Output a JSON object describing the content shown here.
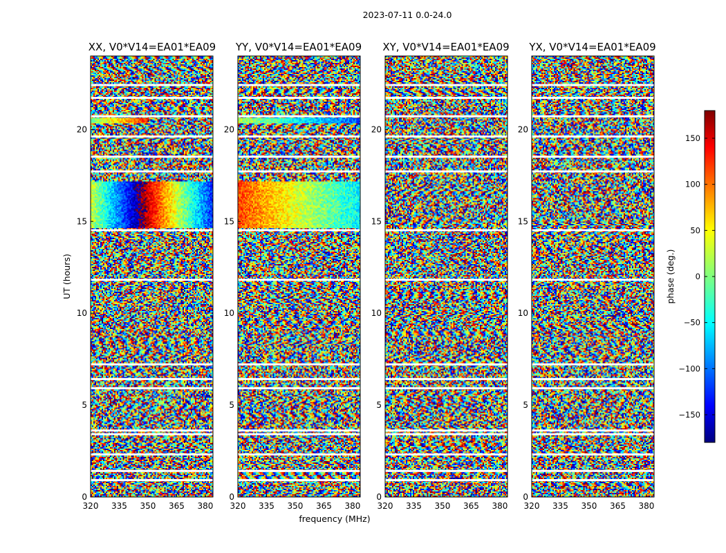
{
  "figure": {
    "suptitle": "2023-07-11 0.0-24.0"
  },
  "colorbar": {
    "label": "phase (deg.)",
    "range": [
      -180,
      180
    ],
    "ticks": [
      150,
      100,
      50,
      0,
      -50,
      -100,
      -150
    ],
    "tick_labels": [
      "150",
      "100",
      "50",
      "0",
      "−50",
      "−100",
      "−150"
    ],
    "colormap": "jet",
    "colors": [
      "#00007f",
      "#0000ff",
      "#007fff",
      "#00ffff",
      "#7fff7f",
      "#ffff00",
      "#ff7f00",
      "#ff0000",
      "#7f0000"
    ]
  },
  "chart_data": [
    {
      "type": "heatmap",
      "title": "XX, V0*V14=EA01*EA09",
      "xlabel": "",
      "ylabel": "UT (hours)",
      "x_ticks": [
        320,
        335,
        350,
        365,
        380
      ],
      "y_ticks": [
        0,
        5,
        10,
        15,
        20
      ],
      "xlim": [
        320,
        384
      ],
      "ylim": [
        0,
        24
      ],
      "z_unit": "phase (deg.)",
      "z_range": [
        -180,
        180
      ],
      "coherent_regions": [
        {
          "ut_range": [
            14.6,
            17.2
          ],
          "freq_range": [
            320,
            384
          ],
          "phase_start_deg": 30,
          "phase_slope_deg_per_mhz": -8
        },
        {
          "ut_range": [
            20.3,
            20.6
          ],
          "freq_range": [
            320,
            350
          ],
          "phase_start_deg": 0,
          "phase_slope_deg_per_mhz": 4
        }
      ],
      "blank_rows_ut": [
        0.9,
        1.4,
        2.3,
        3.4,
        3.6,
        5.9,
        6.4,
        7.2,
        11.8,
        14.5,
        17.7,
        18.5,
        19.6,
        20.7,
        21.7,
        22.4
      ]
    },
    {
      "type": "heatmap",
      "title": "YY, V0*V14=EA01*EA09",
      "xlabel": "frequency (MHz)",
      "ylabel": "",
      "x_ticks": [
        320,
        335,
        350,
        365,
        380
      ],
      "y_ticks": [
        0,
        5,
        10,
        15,
        20
      ],
      "xlim": [
        320,
        384
      ],
      "ylim": [
        0,
        24
      ],
      "z_unit": "phase (deg.)",
      "z_range": [
        -180,
        180
      ],
      "coherent_regions": [
        {
          "ut_range": [
            14.6,
            17.2
          ],
          "freq_range": [
            320,
            384
          ],
          "phase_start_deg": 110,
          "phase_slope_deg_per_mhz": -2.5
        },
        {
          "ut_range": [
            20.3,
            20.6
          ],
          "freq_range": [
            320,
            384
          ],
          "phase_start_deg": 20,
          "phase_slope_deg_per_mhz": -2
        }
      ],
      "blank_rows_ut": [
        0.9,
        1.4,
        2.3,
        3.4,
        3.6,
        5.9,
        6.4,
        7.2,
        11.8,
        14.5,
        17.7,
        18.5,
        19.6,
        20.7,
        21.7,
        22.4
      ]
    },
    {
      "type": "heatmap",
      "title": "XY, V0*V14=EA01*EA09",
      "xlabel": "",
      "ylabel": "",
      "x_ticks": [
        320,
        335,
        350,
        365,
        380
      ],
      "y_ticks": [
        0,
        5,
        10,
        15,
        20
      ],
      "xlim": [
        320,
        384
      ],
      "ylim": [
        0,
        24
      ],
      "z_unit": "phase (deg.)",
      "z_range": [
        -180,
        180
      ],
      "coherent_regions": [],
      "blank_rows_ut": [
        0.9,
        1.4,
        2.3,
        3.4,
        3.6,
        5.9,
        6.4,
        7.2,
        11.8,
        14.5,
        17.7,
        18.5,
        19.6,
        20.7,
        21.7,
        22.4
      ]
    },
    {
      "type": "heatmap",
      "title": "YX, V0*V14=EA01*EA09",
      "xlabel": "",
      "ylabel": "",
      "x_ticks": [
        320,
        335,
        350,
        365,
        380
      ],
      "y_ticks": [
        0,
        5,
        10,
        15,
        20
      ],
      "xlim": [
        320,
        384
      ],
      "ylim": [
        0,
        24
      ],
      "z_unit": "phase (deg.)",
      "z_range": [
        -180,
        180
      ],
      "coherent_regions": [],
      "blank_rows_ut": [
        0.9,
        1.4,
        2.3,
        3.4,
        3.6,
        5.9,
        6.4,
        7.2,
        11.8,
        14.5,
        17.7,
        18.5,
        19.6,
        20.7,
        21.7,
        22.4
      ]
    }
  ]
}
